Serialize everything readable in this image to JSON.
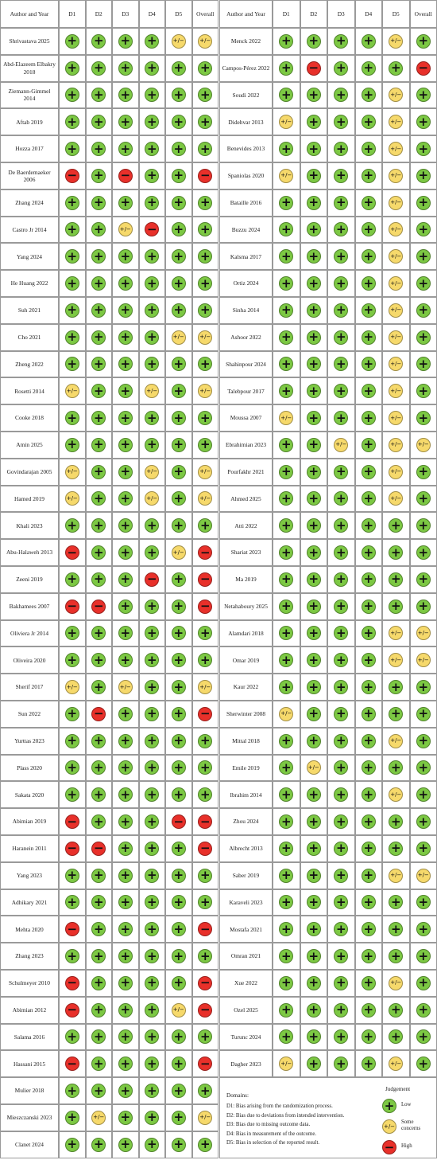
{
  "tables": [
    {
      "columns": [
        "Author and Year",
        "D1",
        "D2",
        "D3",
        "D4",
        "D5",
        "Overall"
      ],
      "rows": [
        {
          "author": "Shrivastava 2025",
          "judgements": [
            "+",
            "+",
            "+",
            "+",
            "+/−",
            "+/−"
          ]
        },
        {
          "author": "Abd-Elazeem Elbakry 2018",
          "judgements": [
            "+",
            "+",
            "+",
            "+",
            "+",
            "+"
          ]
        },
        {
          "author": "Ziemann-Gimmel 2014",
          "judgements": [
            "+",
            "+",
            "+",
            "+",
            "+",
            "+"
          ]
        },
        {
          "author": "Aftab 2019",
          "judgements": [
            "+",
            "+",
            "+",
            "+",
            "+",
            "+"
          ]
        },
        {
          "author": "Hozza 2017",
          "judgements": [
            "+",
            "+",
            "+",
            "+",
            "+",
            "+"
          ]
        },
        {
          "author": "De Baerdemaeker 2006",
          "judgements": [
            "−",
            "+",
            "−",
            "+",
            "+",
            "−"
          ]
        },
        {
          "author": "Zhang 2024",
          "judgements": [
            "+",
            "+",
            "+",
            "+",
            "+",
            "+"
          ]
        },
        {
          "author": "Castro Jr 2014",
          "judgements": [
            "+",
            "+",
            "+/−",
            "−",
            "+",
            "+"
          ]
        },
        {
          "author": "Yang 2024",
          "judgements": [
            "+",
            "+",
            "+",
            "+",
            "+",
            "+"
          ]
        },
        {
          "author": "He Huang 2022",
          "judgements": [
            "+",
            "+",
            "+",
            "+",
            "+",
            "+"
          ]
        },
        {
          "author": "Suh 2021",
          "judgements": [
            "+",
            "+",
            "+",
            "+",
            "+",
            "+"
          ]
        },
        {
          "author": "Cho 2021",
          "judgements": [
            "+",
            "+",
            "+",
            "+",
            "+/−",
            "+/−"
          ]
        },
        {
          "author": "Zheng 2022",
          "judgements": [
            "+",
            "+",
            "+",
            "+",
            "+",
            "+"
          ]
        },
        {
          "author": "Rosetti 2014",
          "judgements": [
            "+/−",
            "+",
            "+",
            "+/−",
            "+",
            "+/−"
          ]
        },
        {
          "author": "Cooke 2018",
          "judgements": [
            "+",
            "+",
            "+",
            "+",
            "+",
            "+"
          ]
        },
        {
          "author": "Amin 2025",
          "judgements": [
            "+",
            "+",
            "+",
            "+",
            "+",
            "+"
          ]
        },
        {
          "author": "Govindarajan 2005",
          "judgements": [
            "+/−",
            "+",
            "+",
            "+/−",
            "+",
            "+/−"
          ]
        },
        {
          "author": "Hamed 2019",
          "judgements": [
            "+/−",
            "+",
            "+",
            "+/−",
            "+",
            "+/−"
          ]
        },
        {
          "author": "Khali 2023",
          "judgements": [
            "+",
            "+",
            "+",
            "+",
            "+",
            "+"
          ]
        },
        {
          "author": "Abu-Halaweh 2013",
          "judgements": [
            "−",
            "+",
            "+",
            "+",
            "+/−",
            "−"
          ]
        },
        {
          "author": "Zeeni 2019",
          "judgements": [
            "+",
            "+",
            "+",
            "−",
            "+",
            "−"
          ]
        },
        {
          "author": "Bakhamees 2007",
          "judgements": [
            "−",
            "−",
            "+",
            "+",
            "+",
            "−"
          ]
        },
        {
          "author": "Oliviera Jr 2014",
          "judgements": [
            "+",
            "+",
            "+",
            "+",
            "+",
            "+"
          ]
        },
        {
          "author": "Oliveira 2020",
          "judgements": [
            "+",
            "+",
            "+",
            "+",
            "+",
            "+"
          ]
        },
        {
          "author": "Sherif 2017",
          "judgements": [
            "+/−",
            "+",
            "+/−",
            "+",
            "+",
            "+/−"
          ]
        },
        {
          "author": "Sun 2022",
          "judgements": [
            "+",
            "−",
            "+",
            "+",
            "+",
            "−"
          ]
        },
        {
          "author": "Yurttas 2023",
          "judgements": [
            "+",
            "+",
            "+",
            "+",
            "+",
            "+"
          ]
        },
        {
          "author": "Plass 2020",
          "judgements": [
            "+",
            "+",
            "+",
            "+",
            "+",
            "+"
          ]
        },
        {
          "author": "Sakata 2020",
          "judgements": [
            "+",
            "+",
            "+",
            "+",
            "+",
            "+"
          ]
        },
        {
          "author": "Abimian 2019",
          "judgements": [
            "−",
            "+",
            "+",
            "+",
            "−",
            "−"
          ]
        },
        {
          "author": "Haranein 2011",
          "judgements": [
            "−",
            "−",
            "+",
            "+",
            "+",
            "−"
          ]
        },
        {
          "author": "Yang 2023",
          "judgements": [
            "+",
            "+",
            "+",
            "+",
            "+",
            "+"
          ]
        },
        {
          "author": "Adhikary 2021",
          "judgements": [
            "+",
            "+",
            "+",
            "+",
            "+",
            "+"
          ]
        },
        {
          "author": "Mehta 2020",
          "judgements": [
            "−",
            "+",
            "+",
            "+",
            "+",
            "−"
          ]
        },
        {
          "author": "Zhang 2023",
          "judgements": [
            "+",
            "+",
            "+",
            "+",
            "+",
            "+"
          ]
        },
        {
          "author": "Schulmeyer 2010",
          "judgements": [
            "−",
            "+",
            "+",
            "+",
            "+",
            "−"
          ]
        },
        {
          "author": "Abimian 2012",
          "judgements": [
            "−",
            "+",
            "+",
            "+",
            "+/−",
            "−"
          ]
        },
        {
          "author": "Salama 2016",
          "judgements": [
            "+",
            "+",
            "+",
            "+",
            "+",
            "+"
          ]
        },
        {
          "author": "Hassani 2015",
          "judgements": [
            "−",
            "+",
            "+",
            "+",
            "+",
            "−"
          ]
        },
        {
          "author": "Mulier 2018",
          "judgements": [
            "+",
            "+",
            "+",
            "+",
            "+",
            "+"
          ]
        },
        {
          "author": "Mieszczanski 2023",
          "judgements": [
            "+",
            "+/−",
            "+",
            "+",
            "+",
            "+/−"
          ]
        },
        {
          "author": "Clanet 2024",
          "judgements": [
            "+",
            "+",
            "+",
            "+",
            "+",
            "+"
          ]
        }
      ]
    },
    {
      "columns": [
        "Author and Year",
        "D1",
        "D2",
        "D3",
        "D4",
        "D5",
        "Overall"
      ],
      "rows": [
        {
          "author": "Menck 2022",
          "judgements": [
            "+",
            "+",
            "+",
            "+",
            "+/−",
            "+"
          ]
        },
        {
          "author": "Campos-Pérez 2022",
          "judgements": [
            "+",
            "−",
            "+",
            "+",
            "+",
            "−"
          ]
        },
        {
          "author": "Soudi 2022",
          "judgements": [
            "+",
            "+",
            "+",
            "+",
            "+/−",
            "+"
          ]
        },
        {
          "author": "Didehvar 2013",
          "judgements": [
            "+/−",
            "+",
            "+",
            "+",
            "+/−",
            "+"
          ]
        },
        {
          "author": "Benevides 2013",
          "judgements": [
            "+",
            "+",
            "+",
            "+",
            "+/−",
            "+"
          ]
        },
        {
          "author": "Spaniolas 2020",
          "judgements": [
            "+/−",
            "+",
            "+",
            "+",
            "+/−",
            "+"
          ]
        },
        {
          "author": "Bataille 2016",
          "judgements": [
            "+",
            "+",
            "+",
            "+",
            "+/−",
            "+"
          ]
        },
        {
          "author": "Buzzu 2024",
          "judgements": [
            "+",
            "+",
            "+",
            "+",
            "+/−",
            "+"
          ]
        },
        {
          "author": "Kalsma 2017",
          "judgements": [
            "+",
            "+",
            "+",
            "+",
            "+/−",
            "+"
          ]
        },
        {
          "author": "Ortiz 2024",
          "judgements": [
            "+",
            "+",
            "+",
            "+",
            "+/−",
            "+"
          ]
        },
        {
          "author": "Sinha 2014",
          "judgements": [
            "+",
            "+",
            "+",
            "+",
            "+/−",
            "+"
          ]
        },
        {
          "author": "Ashoor 2022",
          "judgements": [
            "+",
            "+",
            "+",
            "+",
            "+/−",
            "+"
          ]
        },
        {
          "author": "Shahinpour 2024",
          "judgements": [
            "+",
            "+",
            "+",
            "+",
            "+/−",
            "+"
          ]
        },
        {
          "author": "Talebpour 2017",
          "judgements": [
            "+",
            "+",
            "+",
            "+",
            "+/−",
            "+"
          ]
        },
        {
          "author": "Moussa 2007",
          "judgements": [
            "+/−",
            "+",
            "+",
            "+",
            "+/−",
            "+"
          ]
        },
        {
          "author": "Ebrahimian 2023",
          "judgements": [
            "+",
            "+",
            "+/−",
            "+",
            "+/−",
            "+/−"
          ]
        },
        {
          "author": "Pourfakhr 2021",
          "judgements": [
            "+",
            "+",
            "+",
            "+",
            "+/−",
            "+"
          ]
        },
        {
          "author": "Ahmed 2025",
          "judgements": [
            "+",
            "+",
            "+",
            "+",
            "+/−",
            "+"
          ]
        },
        {
          "author": "Atti 2022",
          "judgements": [
            "+",
            "+",
            "+",
            "+",
            "+",
            "+"
          ]
        },
        {
          "author": "Shariat 2023",
          "judgements": [
            "+",
            "+",
            "+",
            "+",
            "+",
            "+"
          ]
        },
        {
          "author": "Ma 2019",
          "judgements": [
            "+",
            "+",
            "+",
            "+",
            "+",
            "+"
          ]
        },
        {
          "author": "Netahaboury 2025",
          "judgements": [
            "+",
            "+",
            "+",
            "+",
            "+",
            "+"
          ]
        },
        {
          "author": "Alamdari 2018",
          "judgements": [
            "+",
            "+",
            "+",
            "+",
            "+/−",
            "+/−"
          ]
        },
        {
          "author": "Omar 2019",
          "judgements": [
            "+",
            "+",
            "+",
            "+",
            "+/−",
            "+/−"
          ]
        },
        {
          "author": "Kaur 2022",
          "judgements": [
            "+",
            "+",
            "+",
            "+",
            "+",
            "+"
          ]
        },
        {
          "author": "Sherwinter 2008",
          "judgements": [
            "+/−",
            "+",
            "+",
            "+",
            "+",
            "+"
          ]
        },
        {
          "author": "Mittal 2018",
          "judgements": [
            "+",
            "+",
            "+",
            "+",
            "+/−",
            "+"
          ]
        },
        {
          "author": "Emile 2019",
          "judgements": [
            "+",
            "+/−",
            "+",
            "+",
            "+",
            "+"
          ]
        },
        {
          "author": "Ibrahim 2014",
          "judgements": [
            "+",
            "+",
            "+",
            "+",
            "+/−",
            "+"
          ]
        },
        {
          "author": "Zhou 2024",
          "judgements": [
            "+",
            "+",
            "+",
            "+",
            "+",
            "+"
          ]
        },
        {
          "author": "Albrecht 2013",
          "judgements": [
            "+",
            "+",
            "+",
            "+",
            "+",
            "+"
          ]
        },
        {
          "author": "Saber 2019",
          "judgements": [
            "+",
            "+",
            "+",
            "+",
            "+/−",
            "+/−"
          ]
        },
        {
          "author": "Karaveli 2023",
          "judgements": [
            "+",
            "+",
            "+",
            "+",
            "+",
            "+"
          ]
        },
        {
          "author": "Mostafa 2021",
          "judgements": [
            "+",
            "+",
            "+",
            "+",
            "+",
            "+"
          ]
        },
        {
          "author": "Omran 2021",
          "judgements": [
            "+",
            "+",
            "+",
            "+",
            "+",
            "+"
          ]
        },
        {
          "author": "Xue 2022",
          "judgements": [
            "+",
            "+",
            "+",
            "+",
            "+/−",
            "+"
          ]
        },
        {
          "author": "Ozel 2025",
          "judgements": [
            "+",
            "+",
            "+",
            "+",
            "+",
            "+"
          ]
        },
        {
          "author": "Turunc 2024",
          "judgements": [
            "+",
            "+",
            "+",
            "+",
            "+",
            "+"
          ]
        },
        {
          "author": "Dagher 2023",
          "judgements": [
            "+/−",
            "+",
            "+",
            "+",
            "+/−",
            "+"
          ]
        }
      ]
    }
  ],
  "legend": {
    "domains_title": "Domains:",
    "domains": [
      "D1: Bias arising from the randomization process.",
      "D2: Bias due to deviations from intended intervention.",
      "D3: Bias due to missing outcome data.",
      "D4: Bias in measurement of the outcome.",
      "D5: Bias in selection of the reported result."
    ],
    "title": "Judgement",
    "items": [
      {
        "symbol": "+",
        "label": "Low",
        "color": "#7cc843"
      },
      {
        "symbol": "+/−",
        "label": "Some concerns",
        "color": "#f6d96b"
      },
      {
        "symbol": "−",
        "label": "High",
        "color": "#e8302a"
      }
    ]
  }
}
